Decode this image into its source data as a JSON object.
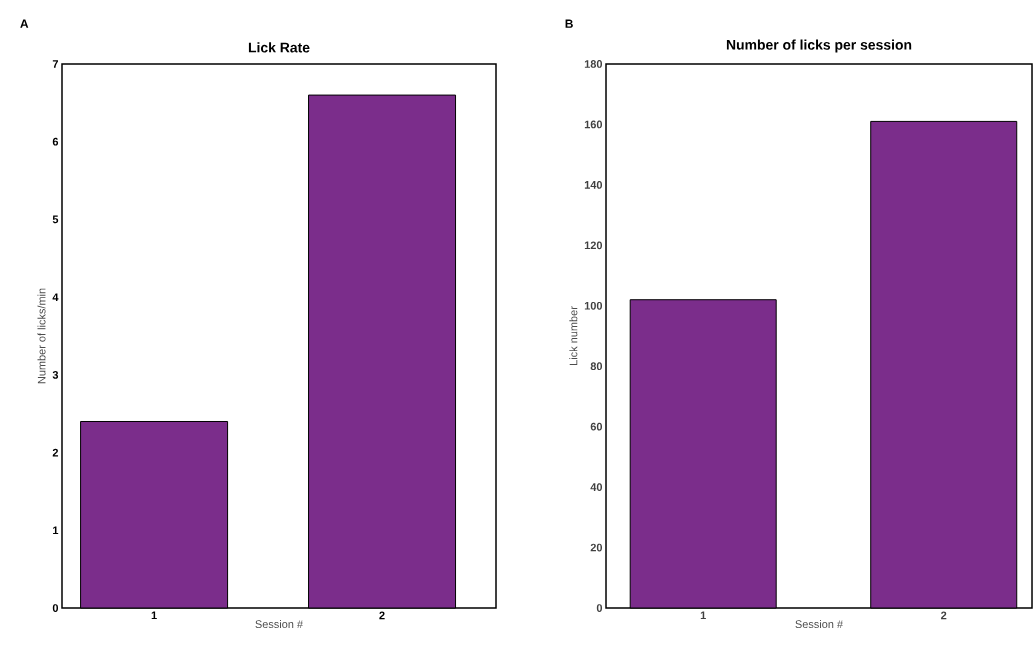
{
  "chart_data": [
    {
      "type": "bar",
      "title": "Lick Rate",
      "xlabel": "Session #",
      "ylabel": "Number of licks/min",
      "categories": [
        "1",
        "2"
      ],
      "values": [
        2.4,
        6.6
      ],
      "color": "#7b2d8b",
      "ylim": [
        0,
        7
      ],
      "yticks": [
        0,
        1,
        2,
        3,
        4,
        5,
        6,
        7
      ],
      "annotations": [
        "A"
      ]
    },
    {
      "type": "bar",
      "title": "Number of licks per session",
      "xlabel": "Session #",
      "ylabel": "Lick number",
      "categories": [
        "1",
        "2"
      ],
      "values": [
        102,
        161
      ],
      "color": "#7b2d8b",
      "ylim": [
        0,
        180
      ],
      "yticks": [
        0,
        20,
        40,
        60,
        80,
        100,
        120,
        140,
        160,
        180
      ],
      "annotations": [
        "B"
      ]
    }
  ]
}
